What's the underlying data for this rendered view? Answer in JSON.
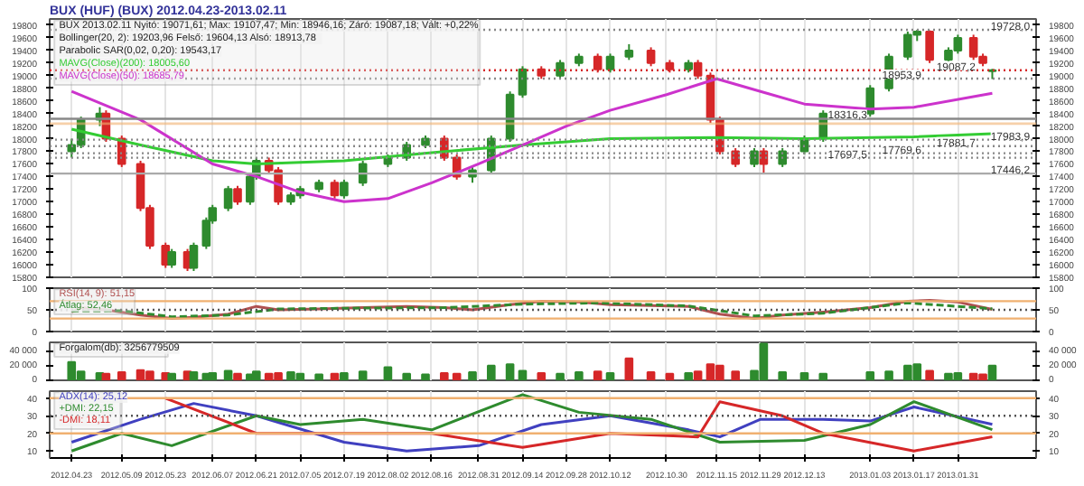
{
  "chart_data": [
    {
      "type": "candlestick",
      "title": "BUX (HUF) (BUX)  2012.04.23-2013.02.11",
      "annotations": [
        "BUX 2013.02.11 Nyitó: 19071,61; Max: 19107,47; Min: 18946,16; Záró: 19087,18; Vált: +0,22%",
        "Bollinger(20, 2): 19203,96  Felső: 19604,13  Alsó: 18913,78",
        "Parabolic SAR(0,02, 0,20): 19543,17"
      ],
      "x": [
        "2012-04-23",
        "2012-04-26",
        "2012-05-02",
        "2012-05-04",
        "2012-05-09",
        "2012-05-15",
        "2012-05-18",
        "2012-05-23",
        "2012-05-25",
        "2012-05-30",
        "2012-06-01",
        "2012-06-05",
        "2012-06-07",
        "2012-06-12",
        "2012-06-15",
        "2012-06-19",
        "2012-06-21",
        "2012-06-25",
        "2012-06-28",
        "2012-07-02",
        "2012-07-05",
        "2012-07-11",
        "2012-07-16",
        "2012-07-19",
        "2012-07-25",
        "2012-08-02",
        "2012-08-08",
        "2012-08-14",
        "2012-08-20",
        "2012-08-24",
        "2012-08-29",
        "2012-09-04",
        "2012-09-10",
        "2012-09-14",
        "2012-09-20",
        "2012-09-26",
        "2012-10-02",
        "2012-10-08",
        "2012-10-12",
        "2012-10-18",
        "2012-10-25",
        "2012-10-31",
        "2012-11-06",
        "2012-11-09",
        "2012-11-13",
        "2012-11-16",
        "2012-11-21",
        "2012-11-27",
        "2012-11-30",
        "2012-12-06",
        "2012-12-13",
        "2012-12-19",
        "2013-01-03",
        "2013-01-09",
        "2013-01-15",
        "2013-01-18",
        "2013-01-22",
        "2013-01-28",
        "2013-01-31",
        "2013-02-05",
        "2013-02-08",
        "2013-02-11"
      ],
      "ohlc": [
        [
          17800,
          18000,
          17700,
          17900
        ],
        [
          17900,
          18350,
          17850,
          18300
        ],
        [
          18300,
          18500,
          18200,
          18400
        ],
        [
          18400,
          18450,
          17950,
          18000
        ],
        [
          18000,
          18050,
          17550,
          17600
        ],
        [
          17600,
          17650,
          16850,
          16900
        ],
        [
          16900,
          16950,
          16250,
          16300
        ],
        [
          16300,
          16350,
          15950,
          16000
        ],
        [
          16000,
          16250,
          15950,
          16200
        ],
        [
          16200,
          16250,
          15900,
          15950
        ],
        [
          15950,
          16350,
          15900,
          16300
        ],
        [
          16300,
          16750,
          16250,
          16700
        ],
        [
          16700,
          16950,
          16650,
          16900
        ],
        [
          16900,
          17250,
          16850,
          17200
        ],
        [
          17200,
          17250,
          16950,
          17000
        ],
        [
          17000,
          17450,
          16950,
          17400
        ],
        [
          17400,
          17700,
          17350,
          17650
        ],
        [
          17650,
          17700,
          17450,
          17500
        ],
        [
          17500,
          17550,
          16950,
          17000
        ],
        [
          17000,
          17150,
          16950,
          17100
        ],
        [
          17100,
          17250,
          17050,
          17200
        ],
        [
          17200,
          17350,
          17150,
          17300
        ],
        [
          17300,
          17350,
          17050,
          17100
        ],
        [
          17100,
          17350,
          17050,
          17300
        ],
        [
          17300,
          17650,
          17250,
          17600
        ],
        [
          17600,
          17750,
          17550,
          17700
        ],
        [
          17700,
          17950,
          17650,
          17900
        ],
        [
          17900,
          18050,
          17850,
          18000
        ],
        [
          18000,
          18050,
          17650,
          17700
        ],
        [
          17700,
          17750,
          17350,
          17400
        ],
        [
          17400,
          17550,
          17300,
          17500
        ],
        [
          17500,
          18050,
          17450,
          18000
        ],
        [
          18000,
          18750,
          17950,
          18700
        ],
        [
          18700,
          19150,
          18650,
          19100
        ],
        [
          19100,
          19150,
          18950,
          19000
        ],
        [
          19000,
          19250,
          18950,
          19200
        ],
        [
          19200,
          19350,
          19150,
          19300
        ],
        [
          19300,
          19350,
          19050,
          19100
        ],
        [
          19100,
          19350,
          19050,
          19300
        ],
        [
          19300,
          19500,
          19250,
          19400
        ],
        [
          19400,
          19450,
          19150,
          19200
        ],
        [
          19200,
          19250,
          19050,
          19100
        ],
        [
          19100,
          19250,
          19050,
          19200
        ],
        [
          19200,
          19250,
          18950,
          19000
        ],
        [
          19000,
          19050,
          18250,
          18300
        ],
        [
          18300,
          18350,
          17750,
          17800
        ],
        [
          17800,
          17850,
          17550,
          17600
        ],
        [
          17600,
          17850,
          17550,
          17800
        ],
        [
          17800,
          17850,
          17446.2,
          17600
        ],
        [
          17600,
          17850,
          17550,
          17800
        ],
        [
          17800,
          18050,
          17750,
          18000
        ],
        [
          18000,
          18450,
          17950,
          18400
        ],
        [
          18400,
          18850,
          18350,
          18800
        ],
        [
          18800,
          19350,
          18750,
          19300
        ],
        [
          19300,
          19700,
          19250,
          19650
        ],
        [
          19650,
          19728,
          19550,
          19700
        ],
        [
          19700,
          19720,
          19200,
          19250
        ],
        [
          19250,
          19450,
          19200,
          19400
        ],
        [
          19400,
          19650,
          19350,
          19600
        ],
        [
          19600,
          19650,
          19250,
          19300
        ],
        [
          19300,
          19350,
          19150,
          19200
        ],
        [
          19071.61,
          19107.47,
          18946.16,
          19087.18
        ]
      ],
      "series": [
        {
          "type": "line",
          "name": "MAVG(Close)(200): 18005,60",
          "color": "#33cc33",
          "x": [
            "2012-04-23",
            "2012-05-15",
            "2012-06-07",
            "2012-06-21",
            "2012-07-19",
            "2012-08-16",
            "2012-09-14",
            "2012-10-12",
            "2012-11-15",
            "2012-12-13",
            "2013-01-17",
            "2013-02-11"
          ],
          "values": [
            18150,
            17900,
            17650,
            17600,
            17650,
            17780,
            17900,
            18000,
            18020,
            18000,
            18030,
            18080
          ]
        },
        {
          "type": "line",
          "name": "MAVG(Close)(50): 18685,79",
          "color": "#cc33cc",
          "x": [
            "2012-04-23",
            "2012-05-15",
            "2012-06-07",
            "2012-06-21",
            "2012-07-05",
            "2012-07-19",
            "2012-08-02",
            "2012-08-16",
            "2012-08-31",
            "2012-09-14",
            "2012-09-28",
            "2012-10-12",
            "2012-10-30",
            "2012-11-15",
            "2012-11-29",
            "2012-12-13",
            "2013-01-03",
            "2013-01-17",
            "2013-02-11"
          ],
          "values": [
            18750,
            18300,
            17600,
            17400,
            17150,
            17000,
            17050,
            17300,
            17600,
            17900,
            18200,
            18450,
            18700,
            18950,
            18750,
            18550,
            18470,
            18500,
            18720
          ]
        }
      ],
      "ref_lines": [
        {
          "axis": "y",
          "value": 19728.0,
          "label": "19728,0",
          "color": "#888888",
          "line_style": "dotted"
        },
        {
          "axis": "y",
          "value": 19087.2,
          "label": "19087,2",
          "color": "#d62728",
          "line_style": "dotted"
        },
        {
          "axis": "y",
          "value": 18953.9,
          "label": "18953,9",
          "color": "#888888",
          "line_style": "dotted"
        },
        {
          "axis": "y",
          "value": 18316.3,
          "label": "18316,3",
          "color": "#888888",
          "line_style": "solid"
        },
        {
          "axis": "y",
          "value": 17983.9,
          "label": "17983,9",
          "color": "#888888",
          "line_style": "dotted"
        },
        {
          "axis": "y",
          "value": 17881.7,
          "label": "17881,7",
          "color": "#888888",
          "line_style": "dotted"
        },
        {
          "axis": "y",
          "value": 17769.6,
          "label": "17769,6",
          "color": "#888888",
          "line_style": "dotted"
        },
        {
          "axis": "y",
          "value": 17697.5,
          "label": "17697,5",
          "color": "#888888",
          "line_style": "dotted"
        },
        {
          "axis": "y",
          "value": 17446.2,
          "label": "17446,2",
          "color": "#aaaaaa",
          "line_style": "solid"
        }
      ],
      "bands": [
        {
          "axis": "y",
          "from": 18220,
          "to": 18260,
          "color": "#f0b070"
        }
      ],
      "xlim": [
        "2012-04-16",
        "2013-02-25"
      ],
      "ylim": [
        15800,
        19900
      ],
      "yticks": [
        15800,
        16000,
        16200,
        16400,
        16600,
        16800,
        17000,
        17200,
        17400,
        17600,
        17800,
        18000,
        18200,
        18400,
        18600,
        18800,
        19000,
        19200,
        19400,
        19600,
        19800
      ],
      "y2lim": [
        15800,
        19900
      ],
      "y2ticks": [
        15800,
        16000,
        16200,
        16400,
        16600,
        16800,
        17000,
        17200,
        17400,
        17600,
        17800,
        18000,
        18200,
        18400,
        18600,
        18800,
        19000,
        19200,
        19400,
        19600,
        19800
      ],
      "grid": "x",
      "legend": "top left",
      "tick_labels": "y"
    },
    {
      "type": "line",
      "series": [
        {
          "name": "RSI(14, 9): 51,15",
          "color": "#b05050",
          "x": [
            "2012-04-23",
            "2012-04-26",
            "2012-05-04",
            "2012-05-15",
            "2012-05-25",
            "2012-06-01",
            "2012-06-12",
            "2012-06-21",
            "2012-06-28",
            "2012-07-11",
            "2012-07-25",
            "2012-08-08",
            "2012-08-20",
            "2012-08-29",
            "2012-09-10",
            "2012-09-20",
            "2012-10-02",
            "2012-10-12",
            "2012-10-25",
            "2012-11-06",
            "2012-11-16",
            "2012-11-27",
            "2012-12-06",
            "2012-12-19",
            "2013-01-03",
            "2013-01-15",
            "2013-01-22",
            "2013-01-31",
            "2013-02-11"
          ],
          "values": [
            45,
            55,
            50,
            38,
            30,
            33,
            40,
            58,
            50,
            52,
            55,
            58,
            55,
            50,
            62,
            70,
            68,
            62,
            60,
            58,
            40,
            30,
            38,
            45,
            55,
            70,
            72,
            68,
            51.15
          ]
        },
        {
          "name": "Átlag: 52,46",
          "color": "#2e8b2e",
          "line_style": "dashed",
          "x": [
            "2012-04-23",
            "2012-05-09",
            "2012-05-25",
            "2012-06-12",
            "2012-06-28",
            "2012-07-25",
            "2012-08-20",
            "2012-09-14",
            "2012-10-08",
            "2012-11-06",
            "2012-11-27",
            "2012-12-19",
            "2013-01-15",
            "2013-02-11"
          ],
          "values": [
            47,
            48,
            34,
            38,
            52,
            54,
            55,
            63,
            66,
            59,
            36,
            42,
            66,
            52.46
          ]
        }
      ],
      "ref_lines": [
        {
          "axis": "y",
          "value": 70,
          "color": "#f0b070",
          "line_style": "solid"
        },
        {
          "axis": "y",
          "value": 30,
          "color": "#f0b070",
          "line_style": "solid"
        },
        {
          "axis": "y",
          "value": 50,
          "color": "#555555",
          "line_style": "dotted"
        }
      ],
      "xlim": [
        "2012-04-16",
        "2013-02-25"
      ],
      "ylim": [
        0,
        100
      ],
      "yticks": [
        0,
        50,
        100
      ],
      "y2lim": [
        0,
        100
      ],
      "y2ticks": [
        0,
        50,
        100
      ],
      "grid": "x",
      "legend": "top left",
      "tick_labels": "y"
    },
    {
      "type": "bar",
      "annotations": [
        "Forgalom(db): 3256779509"
      ],
      "x": [
        "2012-04-23",
        "2012-04-26",
        "2012-05-02",
        "2012-05-04",
        "2012-05-09",
        "2012-05-15",
        "2012-05-18",
        "2012-05-23",
        "2012-05-25",
        "2012-05-30",
        "2012-06-01",
        "2012-06-05",
        "2012-06-07",
        "2012-06-12",
        "2012-06-15",
        "2012-06-19",
        "2012-06-21",
        "2012-06-25",
        "2012-06-28",
        "2012-07-02",
        "2012-07-05",
        "2012-07-11",
        "2012-07-16",
        "2012-07-19",
        "2012-07-25",
        "2012-08-02",
        "2012-08-08",
        "2012-08-14",
        "2012-08-20",
        "2012-08-24",
        "2012-08-29",
        "2012-09-04",
        "2012-09-10",
        "2012-09-14",
        "2012-09-20",
        "2012-09-26",
        "2012-10-02",
        "2012-10-08",
        "2012-10-12",
        "2012-10-18",
        "2012-10-25",
        "2012-10-31",
        "2012-11-06",
        "2012-11-09",
        "2012-11-13",
        "2012-11-16",
        "2012-11-21",
        "2012-11-27",
        "2012-11-30",
        "2012-12-06",
        "2012-12-13",
        "2012-12-19",
        "2013-01-03",
        "2013-01-09",
        "2013-01-15",
        "2013-01-18",
        "2013-01-22",
        "2013-01-28",
        "2013-01-31",
        "2013-02-05",
        "2013-02-08",
        "2013-02-11"
      ],
      "values": [
        25000,
        12000,
        10000,
        9000,
        11000,
        14000,
        12000,
        10000,
        9000,
        12000,
        11000,
        9000,
        10000,
        13000,
        9000,
        8000,
        12000,
        9000,
        10000,
        11000,
        9000,
        8000,
        9000,
        10000,
        12000,
        18000,
        9000,
        8000,
        10000,
        9000,
        11000,
        20000,
        22000,
        13000,
        10000,
        9000,
        11000,
        12000,
        10000,
        30000,
        11000,
        9000,
        10000,
        12000,
        22000,
        20000,
        12000,
        13000,
        50000,
        11000,
        10000,
        9000,
        11000,
        12000,
        20000,
        22000,
        13000,
        9000,
        10000,
        9000,
        8000,
        20000
      ],
      "colors": [
        "#2e8b2e",
        "#2e8b2e",
        "#2e8b2e",
        "#d62728",
        "#d62728",
        "#d62728",
        "#d62728",
        "#d62728",
        "#2e8b2e",
        "#d62728",
        "#2e8b2e",
        "#2e8b2e",
        "#2e8b2e",
        "#2e8b2e",
        "#d62728",
        "#2e8b2e",
        "#2e8b2e",
        "#d62728",
        "#d62728",
        "#2e8b2e",
        "#2e8b2e",
        "#2e8b2e",
        "#d62728",
        "#2e8b2e",
        "#2e8b2e",
        "#2e8b2e",
        "#2e8b2e",
        "#2e8b2e",
        "#d62728",
        "#d62728",
        "#2e8b2e",
        "#2e8b2e",
        "#2e8b2e",
        "#2e8b2e",
        "#d62728",
        "#2e8b2e",
        "#2e8b2e",
        "#d62728",
        "#2e8b2e",
        "#d62728",
        "#d62728",
        "#d62728",
        "#2e8b2e",
        "#d62728",
        "#d62728",
        "#d62728",
        "#d62728",
        "#2e8b2e",
        "#2e8b2e",
        "#2e8b2e",
        "#2e8b2e",
        "#2e8b2e",
        "#2e8b2e",
        "#2e8b2e",
        "#2e8b2e",
        "#2e8b2e",
        "#d62728",
        "#2e8b2e",
        "#2e8b2e",
        "#d62728",
        "#d62728",
        "#2e8b2e"
      ],
      "xlim": [
        "2012-04-16",
        "2013-02-25"
      ],
      "ylim": [
        0,
        52000
      ],
      "yticks": [
        0,
        {
          "value": 20000,
          "label": "20 000"
        },
        {
          "value": 40000,
          "label": "40 000"
        }
      ],
      "y2lim": [
        0,
        52000
      ],
      "y2ticks": [
        0,
        {
          "value": 20000,
          "label": "20 000"
        },
        {
          "value": 40000,
          "label": "40 000"
        }
      ],
      "grid": "x",
      "tick_labels": "y"
    },
    {
      "type": "line",
      "series": [
        {
          "name": "ADX(14): 25,12",
          "color": "#4040c0",
          "x": [
            "2012-04-23",
            "2012-05-15",
            "2012-06-01",
            "2012-06-21",
            "2012-07-19",
            "2012-08-08",
            "2012-08-31",
            "2012-09-20",
            "2012-10-12",
            "2012-11-06",
            "2012-11-16",
            "2012-11-29",
            "2012-12-19",
            "2013-01-03",
            "2013-01-17",
            "2013-02-11"
          ],
          "values": [
            15,
            28,
            37,
            30,
            15,
            10,
            13,
            25,
            30,
            22,
            18,
            28,
            28,
            27,
            35,
            25.12
          ]
        },
        {
          "name": "+DMI: 22,15",
          "color": "#2e8b2e",
          "x": [
            "2012-04-23",
            "2012-05-09",
            "2012-05-25",
            "2012-06-21",
            "2012-07-05",
            "2012-07-25",
            "2012-08-16",
            "2012-09-14",
            "2012-10-02",
            "2012-10-25",
            "2012-11-16",
            "2012-12-13",
            "2013-01-03",
            "2013-01-17",
            "2013-02-11"
          ],
          "values": [
            10,
            20,
            13,
            30,
            25,
            28,
            22,
            42,
            32,
            28,
            15,
            16,
            25,
            38,
            22.15
          ]
        },
        {
          "name": "-DMI: 18,11",
          "color": "#d62728",
          "x": [
            "2012-05-23",
            "2012-06-21",
            "2012-07-19",
            "2012-08-16",
            "2012-09-14",
            "2012-10-12",
            "2012-11-09",
            "2012-11-16",
            "2012-12-06",
            "2012-12-19",
            "2013-01-17",
            "2013-02-11"
          ],
          "values": [
            40,
            20,
            20,
            20,
            12,
            20,
            18,
            38,
            30,
            20,
            10,
            18.11
          ]
        }
      ],
      "ref_lines": [
        {
          "axis": "y",
          "value": 40,
          "color": "#f0b070",
          "line_style": "solid"
        },
        {
          "axis": "y",
          "value": 20,
          "color": "#f0b070",
          "line_style": "solid"
        },
        {
          "axis": "y",
          "value": 30,
          "color": "#555555",
          "line_style": "dotted"
        }
      ],
      "xlim": [
        "2012-04-16",
        "2013-02-25"
      ],
      "xticks": [
        {
          "value": "2012-04-23",
          "label": "2012.04.23"
        },
        {
          "value": "2012-05-09",
          "label": "2012.05.09"
        },
        {
          "value": "2012-05-23",
          "label": "2012.05.23"
        },
        {
          "value": "2012-06-07",
          "label": "2012.06.07"
        },
        {
          "value": "2012-06-21",
          "label": "2012.06.21"
        },
        {
          "value": "2012-07-05",
          "label": "2012.07.05"
        },
        {
          "value": "2012-07-19",
          "label": "2012.07.19"
        },
        {
          "value": "2012-08-02",
          "label": "2012.08.02"
        },
        {
          "value": "2012-08-16",
          "label": "2012.08.16"
        },
        {
          "value": "2012-08-31",
          "label": "2012.08.31"
        },
        {
          "value": "2012-09-14",
          "label": "2012.09.14"
        },
        {
          "value": "2012-09-28",
          "label": "2012.09.28"
        },
        {
          "value": "2012-10-12",
          "label": "2012.10.12"
        },
        {
          "value": "2012-10-30",
          "label": "2012.10.30"
        },
        {
          "value": "2012-11-15",
          "label": "2012.11.15"
        },
        {
          "value": "2012-11-29",
          "label": "2012.11.29"
        },
        {
          "value": "2012-12-13",
          "label": "2012.12.13"
        },
        {
          "value": "2013-01-03",
          "label": "2013.01.03"
        },
        {
          "value": "2013-01-17",
          "label": "2013.01.17"
        },
        {
          "value": "2013-01-31",
          "label": "2013.01.31"
        }
      ],
      "ylim": [
        6,
        44
      ],
      "yticks": [
        10,
        20,
        30,
        40
      ],
      "y2lim": [
        6,
        44
      ],
      "y2ticks": [
        10,
        20,
        30,
        40
      ],
      "grid": "x",
      "legend": "top left"
    }
  ]
}
